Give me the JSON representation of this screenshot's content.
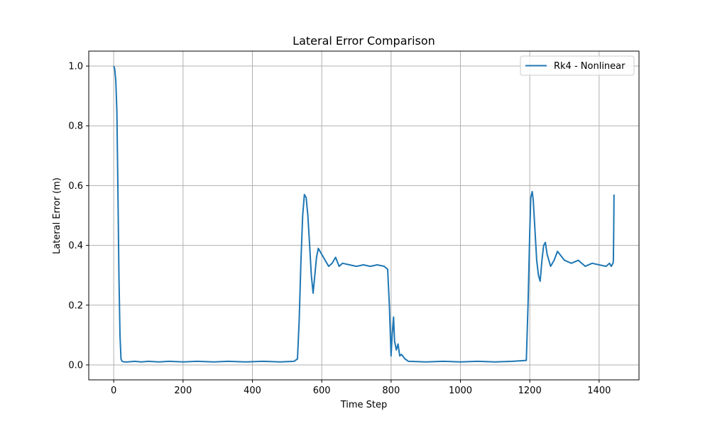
{
  "chart_data": {
    "type": "line",
    "title": "Lateral Error Comparison",
    "xlabel": "Time Step",
    "ylabel": "Lateral Error (m)",
    "xlim": [
      -72,
      1515
    ],
    "ylim": [
      -0.05,
      1.05
    ],
    "xticks": [
      0,
      200,
      400,
      600,
      800,
      1000,
      1200,
      1400
    ],
    "yticks": [
      0.0,
      0.2,
      0.4,
      0.6,
      0.8,
      1.0
    ],
    "xtick_labels": [
      "0",
      "200",
      "400",
      "600",
      "800",
      "1000",
      "1200",
      "1400"
    ],
    "ytick_labels": [
      "0.0",
      "0.2",
      "0.4",
      "0.6",
      "0.8",
      "1.0"
    ],
    "grid": true,
    "legend_position": "top-right",
    "series": [
      {
        "name": "Rk4 - Nonlinear",
        "color": "#1f77b4",
        "x": [
          0,
          3,
          6,
          9,
          12,
          15,
          18,
          21,
          24,
          30,
          40,
          60,
          80,
          100,
          130,
          160,
          200,
          240,
          290,
          330,
          380,
          430,
          480,
          520,
          530,
          535,
          540,
          545,
          550,
          555,
          560,
          565,
          570,
          575,
          580,
          585,
          590,
          595,
          600,
          610,
          620,
          630,
          640,
          650,
          660,
          680,
          700,
          720,
          740,
          760,
          780,
          790,
          795,
          800,
          803,
          807,
          810,
          815,
          820,
          825,
          830,
          840,
          850,
          900,
          950,
          1000,
          1050,
          1100,
          1150,
          1190,
          1195,
          1200,
          1203,
          1207,
          1210,
          1215,
          1220,
          1225,
          1230,
          1235,
          1240,
          1245,
          1250,
          1260,
          1270,
          1280,
          1300,
          1320,
          1340,
          1360,
          1380,
          1400,
          1420,
          1430,
          1435,
          1440,
          1441,
          1442,
          1443
        ],
        "y": [
          1.0,
          0.99,
          0.95,
          0.85,
          0.6,
          0.3,
          0.1,
          0.02,
          0.012,
          0.01,
          0.01,
          0.012,
          0.01,
          0.012,
          0.01,
          0.012,
          0.01,
          0.012,
          0.01,
          0.012,
          0.01,
          0.012,
          0.01,
          0.012,
          0.02,
          0.15,
          0.35,
          0.5,
          0.57,
          0.56,
          0.5,
          0.4,
          0.3,
          0.24,
          0.3,
          0.36,
          0.39,
          0.38,
          0.37,
          0.35,
          0.33,
          0.34,
          0.36,
          0.33,
          0.34,
          0.335,
          0.33,
          0.335,
          0.33,
          0.335,
          0.33,
          0.32,
          0.2,
          0.03,
          0.1,
          0.16,
          0.08,
          0.05,
          0.07,
          0.03,
          0.035,
          0.02,
          0.012,
          0.01,
          0.012,
          0.01,
          0.012,
          0.01,
          0.012,
          0.015,
          0.2,
          0.45,
          0.56,
          0.58,
          0.55,
          0.45,
          0.35,
          0.3,
          0.28,
          0.35,
          0.4,
          0.41,
          0.37,
          0.33,
          0.35,
          0.38,
          0.35,
          0.34,
          0.35,
          0.33,
          0.34,
          0.335,
          0.33,
          0.34,
          0.33,
          0.34,
          0.35,
          0.45,
          0.57
        ]
      }
    ]
  }
}
